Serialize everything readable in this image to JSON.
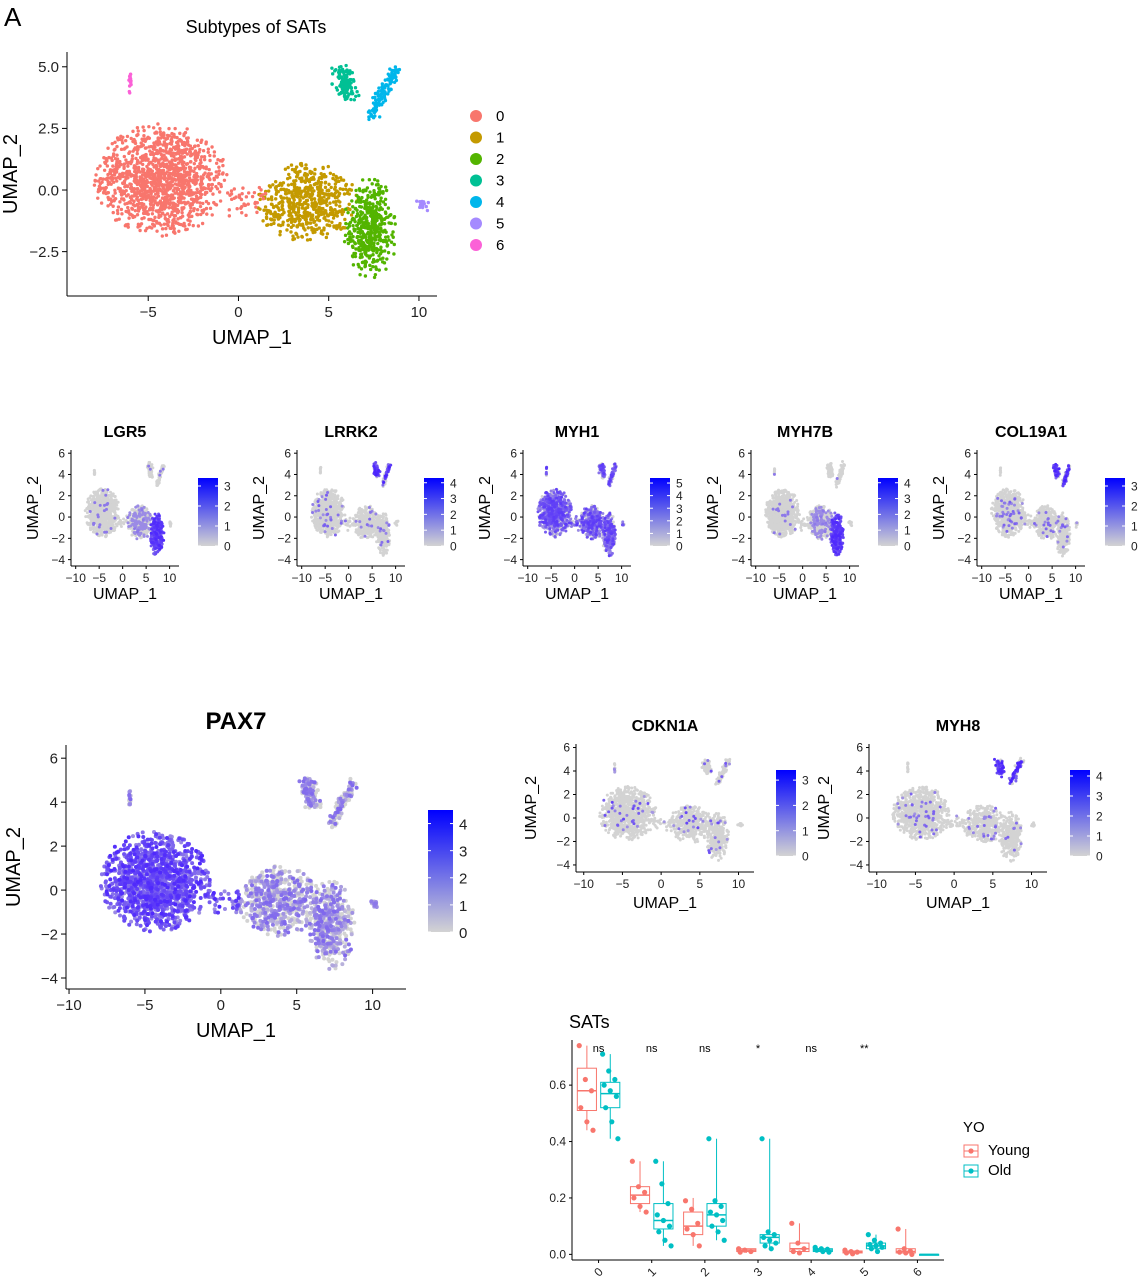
{
  "figure": {
    "panel_label": "A"
  },
  "chart_data": [
    {
      "id": "umap-clusters",
      "type": "scatter",
      "title": "Subtypes of SATs",
      "xlabel": "UMAP_1",
      "ylabel": "UMAP_2",
      "xlim": [
        -9.5,
        11
      ],
      "ylim": [
        -4.3,
        5.6
      ],
      "x_ticks": [
        -5,
        0,
        5,
        10
      ],
      "x_tick_labels": [
        "−5",
        "0",
        "5",
        "10"
      ],
      "y_ticks": [
        -2.5,
        0.0,
        2.5,
        5.0
      ],
      "y_tick_labels": [
        "−2.5",
        "0.0",
        "2.5",
        "5.0"
      ],
      "legend": {
        "position": "right",
        "entries": [
          {
            "label": "0",
            "color": "#F8766D"
          },
          {
            "label": "1",
            "color": "#C49A00"
          },
          {
            "label": "2",
            "color": "#53B400"
          },
          {
            "label": "3",
            "color": "#00C094"
          },
          {
            "label": "4",
            "color": "#00B6EB"
          },
          {
            "label": "5",
            "color": "#A58AFF"
          },
          {
            "label": "6",
            "color": "#FB61D7"
          }
        ]
      },
      "clusters": [
        {
          "label": "0",
          "center": [
            -4.3,
            0.5
          ],
          "spread": [
            2.4,
            1.4
          ]
        },
        {
          "label": "1",
          "center": [
            3.6,
            -0.6
          ],
          "spread": [
            1.6,
            1.0
          ]
        },
        {
          "label": "2",
          "center": [
            7.3,
            -1.5
          ],
          "spread": [
            1.0,
            1.2
          ]
        },
        {
          "label": "3",
          "center": [
            5.9,
            4.3
          ],
          "spread": [
            0.4,
            0.6
          ]
        },
        {
          "label": "4",
          "center": [
            8.2,
            4.0
          ],
          "spread": [
            0.5,
            0.8
          ]
        },
        {
          "label": "5",
          "center": [
            10.2,
            -0.5
          ],
          "spread": [
            0.2,
            0.2
          ]
        },
        {
          "label": "6",
          "center": [
            -6.0,
            4.5
          ],
          "spread": [
            0.05,
            0.2
          ]
        }
      ]
    },
    {
      "id": "feature-LGR5",
      "type": "scatter",
      "title": "LGR5",
      "xlabel": "UMAP_1",
      "ylabel": "UMAP_2",
      "xlim": [
        -11,
        12
      ],
      "ylim": [
        -4.6,
        6.3
      ],
      "x_ticks": [
        -10,
        -5,
        0,
        5,
        10
      ],
      "x_tick_labels": [
        "−10",
        "−5",
        "0",
        "5",
        "10"
      ],
      "y_ticks": [
        -4,
        -2,
        0,
        2,
        4,
        6
      ],
      "y_tick_labels": [
        "−4",
        "−2",
        "0",
        "2",
        "4",
        "6"
      ],
      "colorbar": {
        "min": 0,
        "max": 3.4,
        "ticks": [
          0,
          1,
          2,
          3
        ],
        "low_color": "#D3D3D3",
        "high_color": "#0000FF"
      },
      "high_expression_region": "cluster-2"
    },
    {
      "id": "feature-LRRK2",
      "type": "scatter",
      "title": "LRRK2",
      "xlabel": "UMAP_1",
      "ylabel": "UMAP_2",
      "xlim": [
        -11,
        12
      ],
      "ylim": [
        -4.6,
        6.3
      ],
      "x_ticks": [
        -10,
        -5,
        0,
        5,
        10
      ],
      "x_tick_labels": [
        "−10",
        "−5",
        "0",
        "5",
        "10"
      ],
      "y_ticks": [
        -4,
        -2,
        0,
        2,
        4,
        6
      ],
      "y_tick_labels": [
        "−4",
        "−2",
        "0",
        "2",
        "4",
        "6"
      ],
      "colorbar": {
        "min": 0,
        "max": 4.3,
        "ticks": [
          0,
          1,
          2,
          3,
          4
        ],
        "low_color": "#D3D3D3",
        "high_color": "#0000FF"
      },
      "high_expression_region": "cluster-3-4"
    },
    {
      "id": "feature-MYH1",
      "type": "scatter",
      "title": "MYH1",
      "xlabel": "UMAP_1",
      "ylabel": "UMAP_2",
      "xlim": [
        -11,
        12
      ],
      "ylim": [
        -4.6,
        6.3
      ],
      "x_ticks": [
        -10,
        -5,
        0,
        5,
        10
      ],
      "x_tick_labels": [
        "−10",
        "−5",
        "0",
        "5",
        "10"
      ],
      "y_ticks": [
        -4,
        -2,
        0,
        2,
        4,
        6
      ],
      "y_tick_labels": [
        "−4",
        "−2",
        "0",
        "2",
        "4",
        "6"
      ],
      "colorbar": {
        "min": 0,
        "max": 5.4,
        "ticks": [
          0,
          1,
          2,
          3,
          4,
          5
        ],
        "low_color": "#D3D3D3",
        "high_color": "#0000FF"
      },
      "high_expression_region": "broad"
    },
    {
      "id": "feature-MYH7B",
      "type": "scatter",
      "title": "MYH7B",
      "xlabel": "UMAP_1",
      "ylabel": "UMAP_2",
      "xlim": [
        -11,
        12
      ],
      "ylim": [
        -4.6,
        6.3
      ],
      "x_ticks": [
        -10,
        -5,
        0,
        5,
        10
      ],
      "x_tick_labels": [
        "−10",
        "−5",
        "0",
        "5",
        "10"
      ],
      "y_ticks": [
        -4,
        -2,
        0,
        2,
        4,
        6
      ],
      "y_tick_labels": [
        "−4",
        "−2",
        "0",
        "2",
        "4",
        "6"
      ],
      "colorbar": {
        "min": 0,
        "max": 4.3,
        "ticks": [
          0,
          1,
          2,
          3,
          4
        ],
        "low_color": "#D3D3D3",
        "high_color": "#0000FF"
      },
      "high_expression_region": "cluster-2"
    },
    {
      "id": "feature-COL19A1",
      "type": "scatter",
      "title": "COL19A1",
      "xlabel": "UMAP_1",
      "ylabel": "UMAP_2",
      "xlim": [
        -11,
        12
      ],
      "ylim": [
        -4.6,
        6.3
      ],
      "x_ticks": [
        -10,
        -5,
        0,
        5,
        10
      ],
      "x_tick_labels": [
        "−10",
        "−5",
        "0",
        "5",
        "10"
      ],
      "y_ticks": [
        -4,
        -2,
        0,
        2,
        4,
        6
      ],
      "y_tick_labels": [
        "−4",
        "−2",
        "0",
        "2",
        "4",
        "6"
      ],
      "colorbar": {
        "min": 0,
        "max": 3.4,
        "ticks": [
          0,
          1,
          2,
          3
        ],
        "low_color": "#D3D3D3",
        "high_color": "#0000FF"
      },
      "high_expression_region": "cluster-3-4"
    },
    {
      "id": "feature-PAX7",
      "type": "scatter",
      "title": "PAX7",
      "xlabel": "UMAP_1",
      "ylabel": "UMAP_2",
      "xlim": [
        -10.2,
        12.2
      ],
      "ylim": [
        -4.5,
        6.6
      ],
      "x_ticks": [
        -10,
        -5,
        0,
        5,
        10
      ],
      "x_tick_labels": [
        "−10",
        "−5",
        "0",
        "5",
        "10"
      ],
      "y_ticks": [
        -4,
        -2,
        0,
        2,
        4,
        6
      ],
      "y_tick_labels": [
        "−4",
        "−2",
        "0",
        "2",
        "4",
        "6"
      ],
      "colorbar": {
        "min": 0,
        "max": 4.5,
        "ticks": [
          0,
          1,
          2,
          3,
          4
        ],
        "low_color": "#D3D3D3",
        "high_color": "#0000FF"
      },
      "high_expression_region": "cluster-0"
    },
    {
      "id": "feature-CDKN1A",
      "type": "scatter",
      "title": "CDKN1A",
      "xlabel": "UMAP_1",
      "ylabel": "UMAP_2",
      "xlim": [
        -11,
        12
      ],
      "ylim": [
        -4.6,
        6.3
      ],
      "x_ticks": [
        -10,
        -5,
        0,
        5,
        10
      ],
      "x_tick_labels": [
        "−10",
        "−5",
        "0",
        "5",
        "10"
      ],
      "y_ticks": [
        -4,
        -2,
        0,
        2,
        4,
        6
      ],
      "y_tick_labels": [
        "−4",
        "−2",
        "0",
        "2",
        "4",
        "6"
      ],
      "colorbar": {
        "min": 0,
        "max": 3.4,
        "ticks": [
          0,
          1,
          2,
          3
        ],
        "low_color": "#D3D3D3",
        "high_color": "#0000FF"
      },
      "high_expression_region": "sparse"
    },
    {
      "id": "feature-MYH8",
      "type": "scatter",
      "title": "MYH8",
      "xlabel": "UMAP_1",
      "ylabel": "UMAP_2",
      "xlim": [
        -11,
        12
      ],
      "ylim": [
        -4.6,
        6.3
      ],
      "x_ticks": [
        -10,
        -5,
        0,
        5,
        10
      ],
      "x_tick_labels": [
        "−10",
        "−5",
        "0",
        "5",
        "10"
      ],
      "y_ticks": [
        -4,
        -2,
        0,
        2,
        4,
        6
      ],
      "y_tick_labels": [
        "−4",
        "−2",
        "0",
        "2",
        "4",
        "6"
      ],
      "colorbar": {
        "min": 0,
        "max": 4.3,
        "ticks": [
          0,
          1,
          2,
          3,
          4
        ],
        "low_color": "#D3D3D3",
        "high_color": "#0000FF"
      },
      "high_expression_region": "cluster-3-4"
    },
    {
      "id": "boxplot-SATs",
      "type": "box",
      "title": "SATs",
      "xlabel": "",
      "ylabel": "",
      "categories": [
        "0",
        "1",
        "2",
        "3",
        "4",
        "5",
        "6"
      ],
      "ylim": [
        -0.02,
        0.76
      ],
      "y_ticks": [
        0.0,
        0.2,
        0.4,
        0.6
      ],
      "y_tick_labels": [
        "0.0",
        "0.2",
        "0.4",
        "0.6"
      ],
      "significance": [
        "ns",
        "ns",
        "ns",
        "*",
        "ns",
        "**",
        ""
      ],
      "legend": {
        "title": "YO",
        "position": "right",
        "entries": [
          {
            "label": "Young",
            "color": "#F8766D"
          },
          {
            "label": "Old",
            "color": "#00BFC4"
          }
        ]
      },
      "series": [
        {
          "name": "Young",
          "color": "#F8766D",
          "boxes": [
            {
              "q1": 0.51,
              "median": 0.58,
              "q3": 0.66,
              "min": 0.44,
              "max": 0.74
            },
            {
              "q1": 0.18,
              "median": 0.21,
              "q3": 0.24,
              "min": 0.15,
              "max": 0.33
            },
            {
              "q1": 0.07,
              "median": 0.1,
              "q3": 0.15,
              "min": 0.03,
              "max": 0.2
            },
            {
              "q1": 0.01,
              "median": 0.015,
              "q3": 0.02,
              "min": 0.005,
              "max": 0.02
            },
            {
              "q1": 0.01,
              "median": 0.02,
              "q3": 0.04,
              "min": 0.0,
              "max": 0.11
            },
            {
              "q1": 0.005,
              "median": 0.008,
              "q3": 0.012,
              "min": 0.0,
              "max": 0.015
            },
            {
              "q1": 0.005,
              "median": 0.01,
              "q3": 0.02,
              "min": 0.0,
              "max": 0.09
            }
          ],
          "points": [
            [
              0.74,
              0.62,
              0.58,
              0.52,
              0.47,
              0.44
            ],
            [
              0.33,
              0.24,
              0.22,
              0.2,
              0.17,
              0.15
            ],
            [
              0.19,
              0.16,
              0.11,
              0.09,
              0.07,
              0.03
            ],
            [
              0.02,
              0.015,
              0.01,
              0.008
            ],
            [
              0.11,
              0.04,
              0.02,
              0.01,
              0.005
            ],
            [
              0.015,
              0.01,
              0.008,
              0.005,
              0.002
            ],
            [
              0.09,
              0.02,
              0.012,
              0.008,
              0.005,
              0.0
            ]
          ]
        },
        {
          "name": "Old",
          "color": "#00BFC4",
          "boxes": [
            {
              "q1": 0.52,
              "median": 0.57,
              "q3": 0.61,
              "min": 0.41,
              "max": 0.71
            },
            {
              "q1": 0.09,
              "median": 0.12,
              "q3": 0.18,
              "min": 0.03,
              "max": 0.33
            },
            {
              "q1": 0.1,
              "median": 0.14,
              "q3": 0.18,
              "min": 0.05,
              "max": 0.41
            },
            {
              "q1": 0.04,
              "median": 0.06,
              "q3": 0.07,
              "min": 0.02,
              "max": 0.41
            },
            {
              "q1": 0.01,
              "median": 0.015,
              "q3": 0.02,
              "min": 0.005,
              "max": 0.025
            },
            {
              "q1": 0.02,
              "median": 0.03,
              "q3": 0.04,
              "min": 0.005,
              "max": 0.07
            },
            {
              "q1": 0.0,
              "median": 0.0,
              "q3": 0.0,
              "min": 0.0,
              "max": 0.0
            }
          ],
          "points": [
            [
              0.71,
              0.65,
              0.62,
              0.6,
              0.58,
              0.56,
              0.52,
              0.47,
              0.41
            ],
            [
              0.33,
              0.25,
              0.18,
              0.14,
              0.12,
              0.1,
              0.08,
              0.05,
              0.03
            ],
            [
              0.41,
              0.19,
              0.17,
              0.15,
              0.14,
              0.12,
              0.1,
              0.08,
              0.05
            ],
            [
              0.41,
              0.08,
              0.07,
              0.06,
              0.05,
              0.04,
              0.03,
              0.02
            ],
            [
              0.025,
              0.02,
              0.018,
              0.015,
              0.01,
              0.008
            ],
            [
              0.07,
              0.05,
              0.04,
              0.035,
              0.03,
              0.025,
              0.02,
              0.01
            ],
            []
          ]
        }
      ]
    }
  ]
}
